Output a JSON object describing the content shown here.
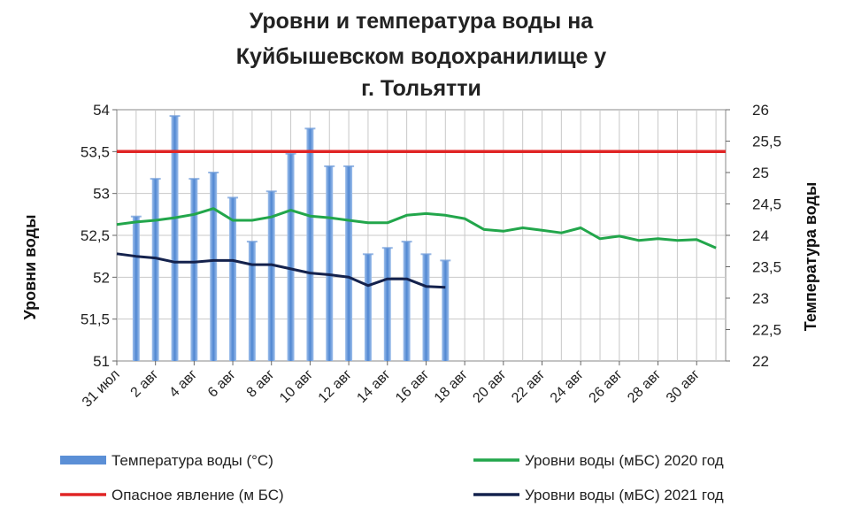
{
  "chart_data": {
    "type": "bar+line",
    "title_lines": [
      "Уровни и температура воды на",
      "Куйбышевском водохранилище у",
      "г. Тольятти"
    ],
    "ylabel_left": "Уровни воды",
    "ylabel_right": "Температура воды",
    "ylim_left": [
      51,
      54
    ],
    "ylim_right": [
      22,
      26
    ],
    "yticks_left": [
      "51",
      "51,5",
      "52",
      "52,5",
      "53",
      "53,5",
      "54"
    ],
    "yticks_right": [
      "22",
      "22,5",
      "23",
      "23,5",
      "24",
      "24,5",
      "25",
      "25,5",
      "26"
    ],
    "xticks": [
      "31 июл",
      "2 авг",
      "4 авг",
      "6 авг",
      "8 авг",
      "10 авг",
      "12 авг",
      "14 авг",
      "16 авг",
      "18 авг",
      "20 авг",
      "22 авг",
      "24 авг",
      "26 авг",
      "28 авг",
      "30 авг"
    ],
    "grid": true,
    "legend_position": "bottom",
    "series": [
      {
        "name": "Температура воды (°С)",
        "kind": "bar",
        "axis": "right",
        "color": "#5b8fd6",
        "x": [
          1,
          2,
          3,
          4,
          5,
          6,
          7,
          8,
          9,
          10,
          11,
          12,
          13,
          14,
          15,
          16,
          17
        ],
        "values": [
          24.3,
          24.9,
          25.9,
          24.9,
          25.0,
          24.6,
          23.9,
          24.7,
          25.3,
          25.7,
          25.1,
          25.1,
          23.7,
          23.8,
          23.9,
          23.7,
          23.6
        ]
      },
      {
        "name": "Уровни воды (мБС) 2020 год",
        "kind": "line",
        "axis": "left",
        "color": "#22a64b",
        "x": [
          0,
          1,
          2,
          3,
          4,
          5,
          6,
          7,
          8,
          9,
          10,
          11,
          12,
          13,
          14,
          15,
          16,
          17,
          18,
          19,
          20,
          21,
          22,
          23,
          24,
          25,
          26,
          27,
          28,
          29,
          30,
          31
        ],
        "values": [
          52.63,
          52.66,
          52.68,
          52.71,
          52.75,
          52.82,
          52.68,
          52.68,
          52.72,
          52.8,
          52.73,
          52.71,
          52.68,
          52.65,
          52.65,
          52.74,
          52.76,
          52.74,
          52.7,
          52.57,
          52.55,
          52.59,
          52.56,
          52.53,
          52.59,
          52.46,
          52.49,
          52.44,
          52.46,
          52.44,
          52.45,
          52.35
        ]
      },
      {
        "name": "Опасное явление    (м БС)",
        "kind": "line",
        "axis": "left",
        "color": "#e02525",
        "x": [
          0,
          31.5
        ],
        "values": [
          53.5,
          53.5
        ]
      },
      {
        "name": "Уровни воды (мБС) 2021 год",
        "kind": "line",
        "axis": "left",
        "color": "#14224d",
        "x": [
          0,
          1,
          2,
          3,
          4,
          5,
          6,
          7,
          8,
          9,
          10,
          11,
          12,
          13,
          14,
          15,
          16,
          17
        ],
        "values": [
          52.28,
          52.25,
          52.23,
          52.18,
          52.18,
          52.2,
          52.2,
          52.15,
          52.15,
          52.1,
          52.05,
          52.03,
          52.0,
          51.9,
          51.98,
          51.98,
          51.89,
          51.88
        ]
      }
    ]
  }
}
